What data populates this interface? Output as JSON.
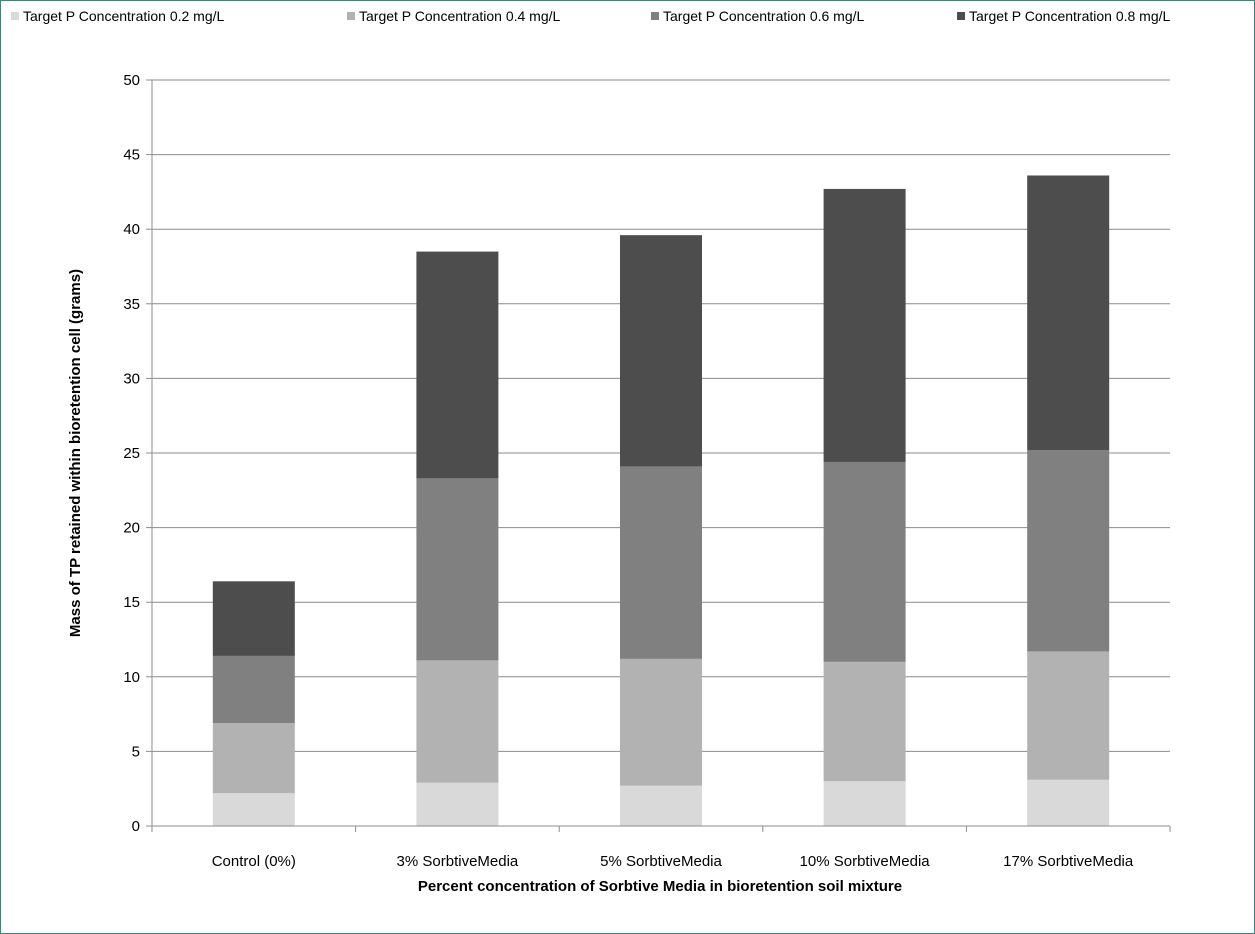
{
  "chart_data": {
    "type": "bar",
    "stacked": true,
    "title": "",
    "xlabel": "Percent  concentration  of  Sorbtive Media in bioretention  soil mixture",
    "ylabel": "Mass of TP retained  within bioretention cell (grams)",
    "ylim": [
      0,
      50
    ],
    "yticks": [
      0,
      5,
      10,
      15,
      20,
      25,
      30,
      35,
      40,
      45,
      50
    ],
    "grid": true,
    "legend_position": "top",
    "categories": [
      "Control (0%)",
      "3% SorbtiveMedia",
      "5% SorbtiveMedia",
      "10% SorbtiveMedia",
      "17% SorbtiveMedia"
    ],
    "series": [
      {
        "name": "Target P Concentration 0.2 mg/L",
        "color": "#d9d9d9",
        "values": [
          2.2,
          2.9,
          2.7,
          3.0,
          3.1
        ]
      },
      {
        "name": "Target P Concentration 0.4 mg/L",
        "color": "#b2b2b2",
        "values": [
          4.7,
          8.2,
          8.5,
          8.0,
          8.6
        ]
      },
      {
        "name": "Target P Concentration 0.6 mg/L",
        "color": "#808080",
        "values": [
          4.5,
          12.2,
          12.9,
          13.4,
          13.5
        ]
      },
      {
        "name": "Target P Concentration 0.8 mg/L",
        "color": "#4d4d4d",
        "values": [
          5.0,
          15.2,
          15.5,
          18.3,
          18.4
        ]
      }
    ]
  }
}
